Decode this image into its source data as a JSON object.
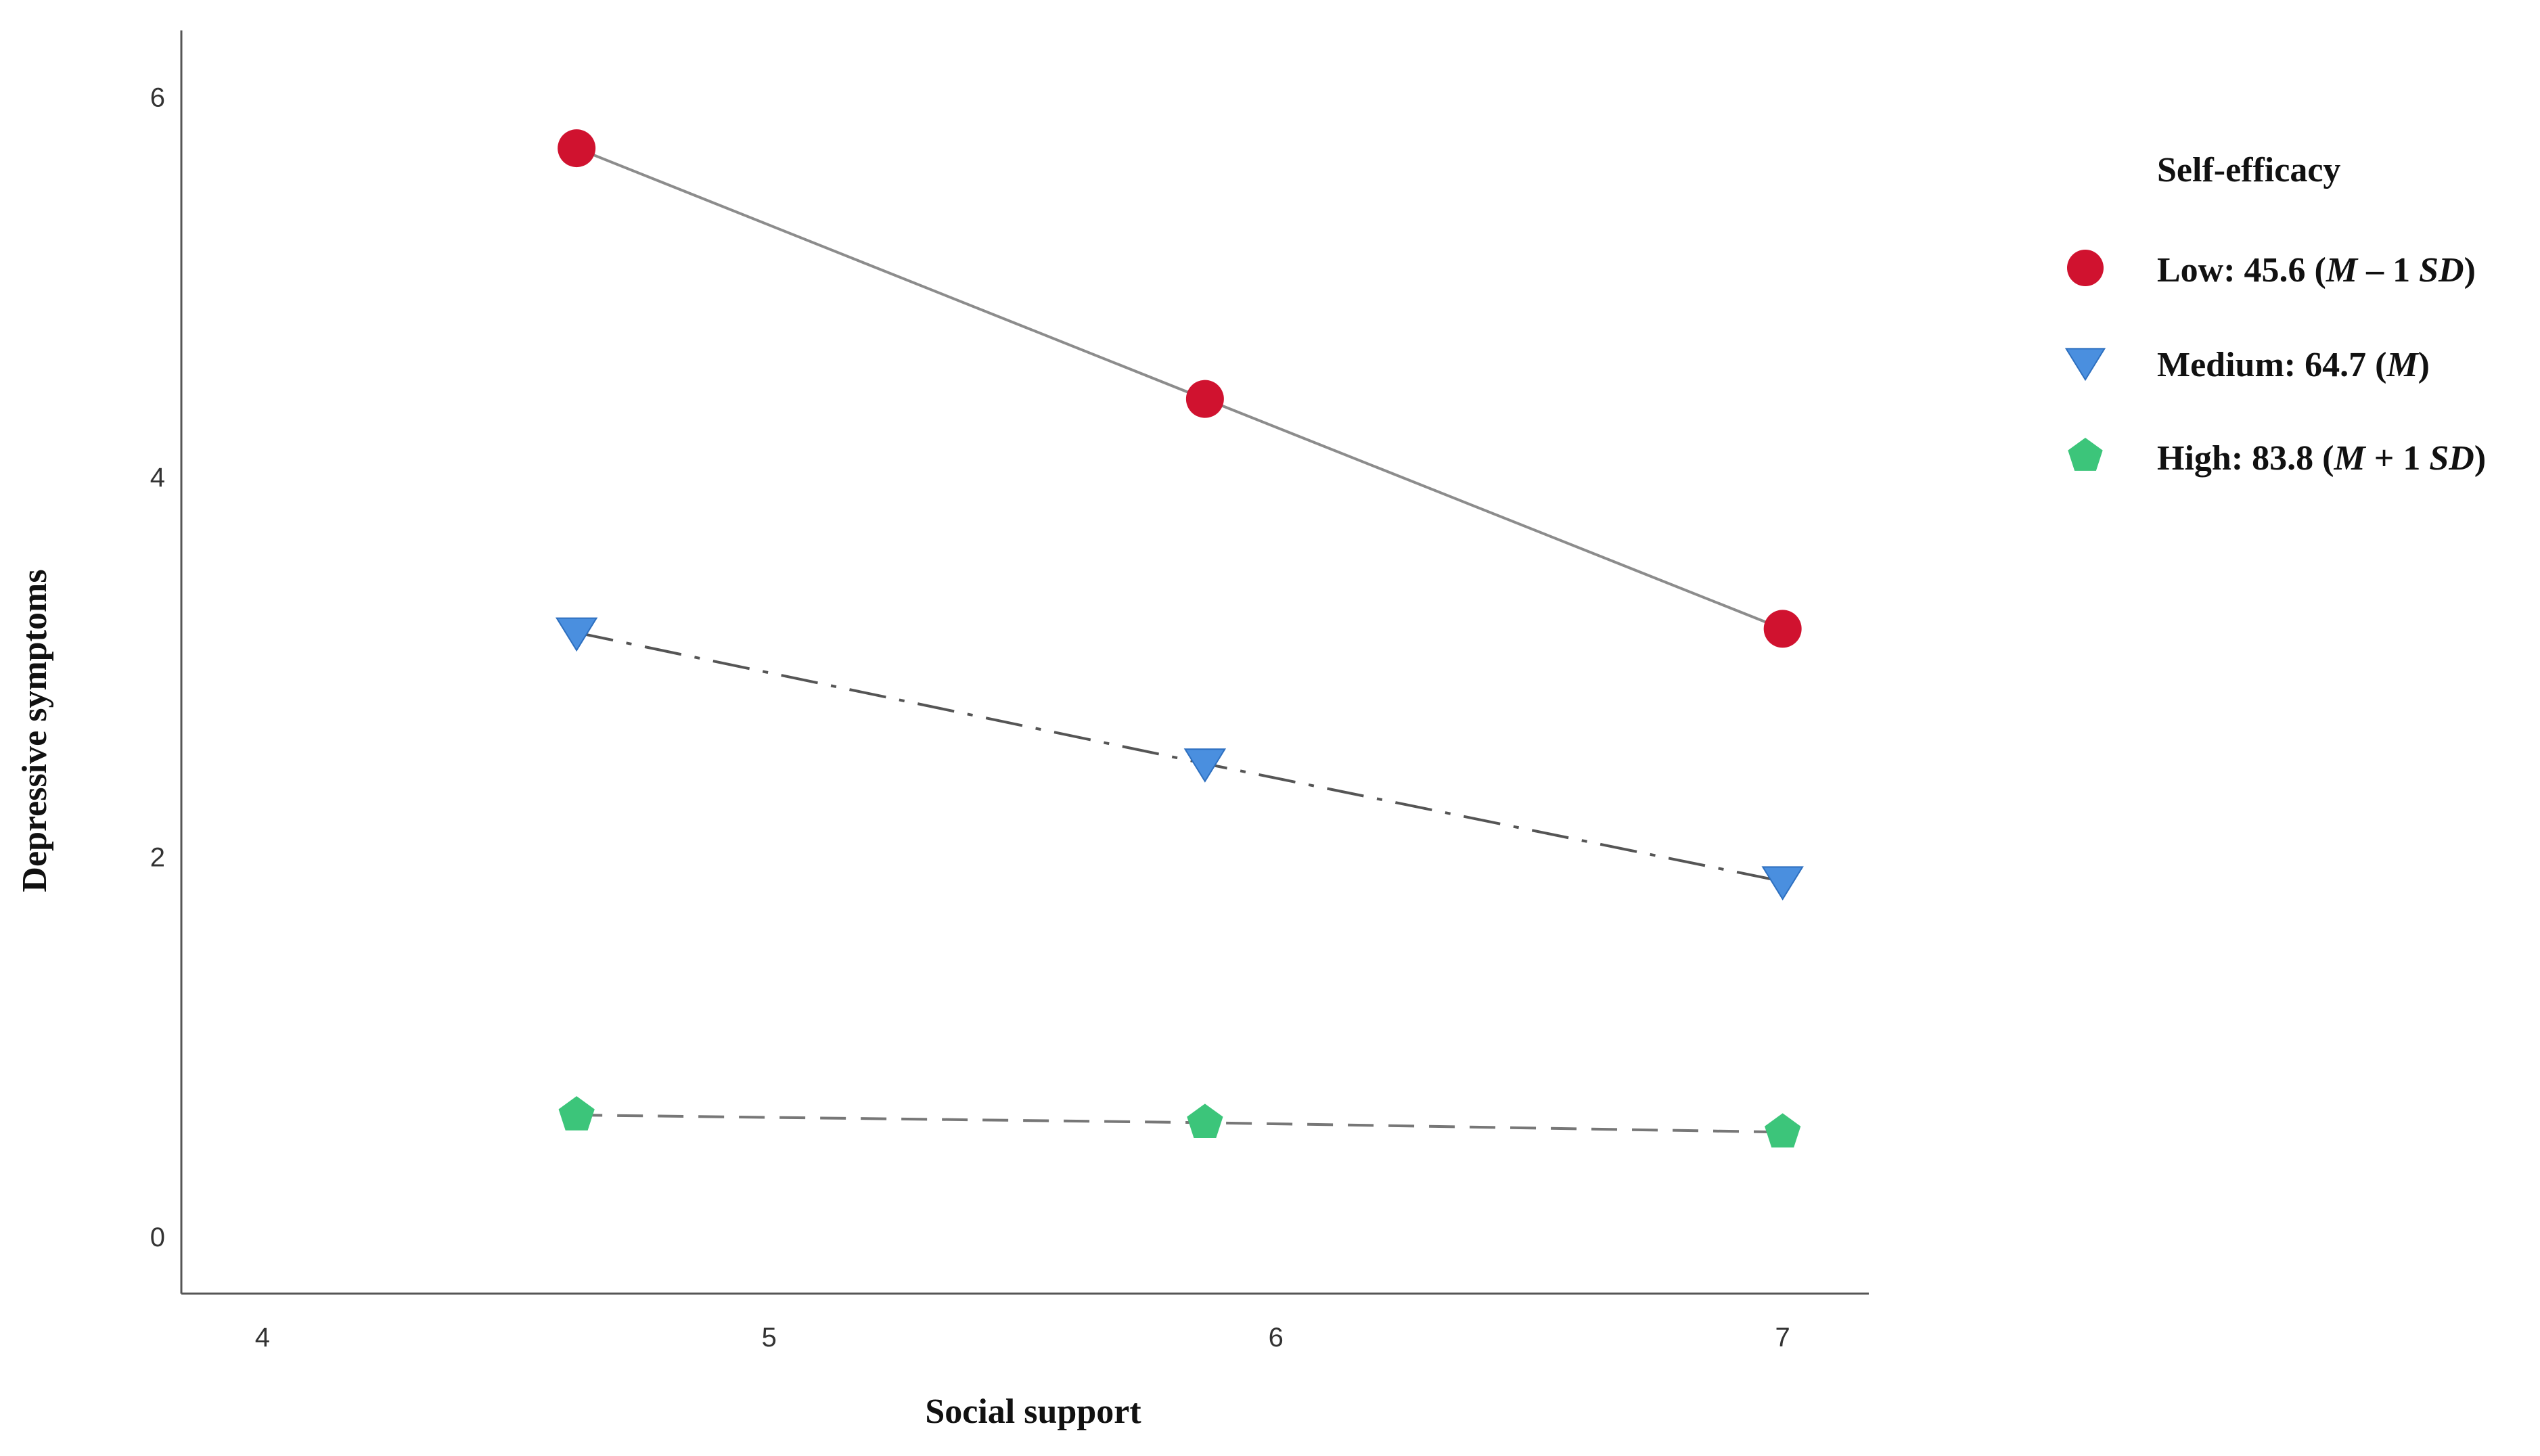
{
  "chart_data": {
    "type": "line",
    "xlabel": "Social support",
    "ylabel": "Depressive symptoms",
    "xlim": [
      3.84,
      7.17
    ],
    "ylim": [
      -0.3,
      6.35
    ],
    "xticks": [
      4,
      5,
      6,
      7
    ],
    "yticks": [
      0,
      2,
      4,
      6
    ],
    "grid": false,
    "legend": {
      "title": "Self-efficacy",
      "placement": "right",
      "entries": [
        {
          "series": 0,
          "prefix": "Low: 45.6 (",
          "parts": [
            {
              "text": "M",
              "italic": true
            },
            {
              "text": " – 1 ",
              "italic": false
            },
            {
              "text": "SD",
              "italic": true
            },
            {
              "text": ")",
              "italic": false
            }
          ]
        },
        {
          "series": 1,
          "prefix": "Medium: 64.7 (",
          "parts": [
            {
              "text": "M",
              "italic": true
            },
            {
              "text": ")",
              "italic": false
            }
          ]
        },
        {
          "series": 2,
          "prefix": "High: 83.8 (",
          "parts": [
            {
              "text": "M",
              "italic": true
            },
            {
              "text": " + 1 ",
              "italic": false
            },
            {
              "text": "SD",
              "italic": true
            },
            {
              "text": ")",
              "italic": false
            }
          ]
        }
      ]
    },
    "series": [
      {
        "name": "Low: 45.6 (M – 1 SD)",
        "marker": "circle",
        "color": "#d0122f",
        "line_style": "solid",
        "line_color": "#8c8c8c",
        "x": [
          4.62,
          5.86,
          7.0
        ],
        "y": [
          5.73,
          4.41,
          3.2
        ]
      },
      {
        "name": "Medium: 64.7 (M)",
        "marker": "triangle-down",
        "color": "#4a8fdf",
        "line_style": "dash-dot",
        "line_color": "#555555",
        "x": [
          4.62,
          5.86,
          7.0
        ],
        "y": [
          3.18,
          2.49,
          1.87
        ]
      },
      {
        "name": "High: 83.8 (M + 1 SD)",
        "marker": "pentagon",
        "color": "#3cc57a",
        "line_style": "dashed",
        "line_color": "#777777",
        "x": [
          4.62,
          5.86,
          7.0
        ],
        "y": [
          0.64,
          0.6,
          0.55
        ]
      }
    ]
  }
}
